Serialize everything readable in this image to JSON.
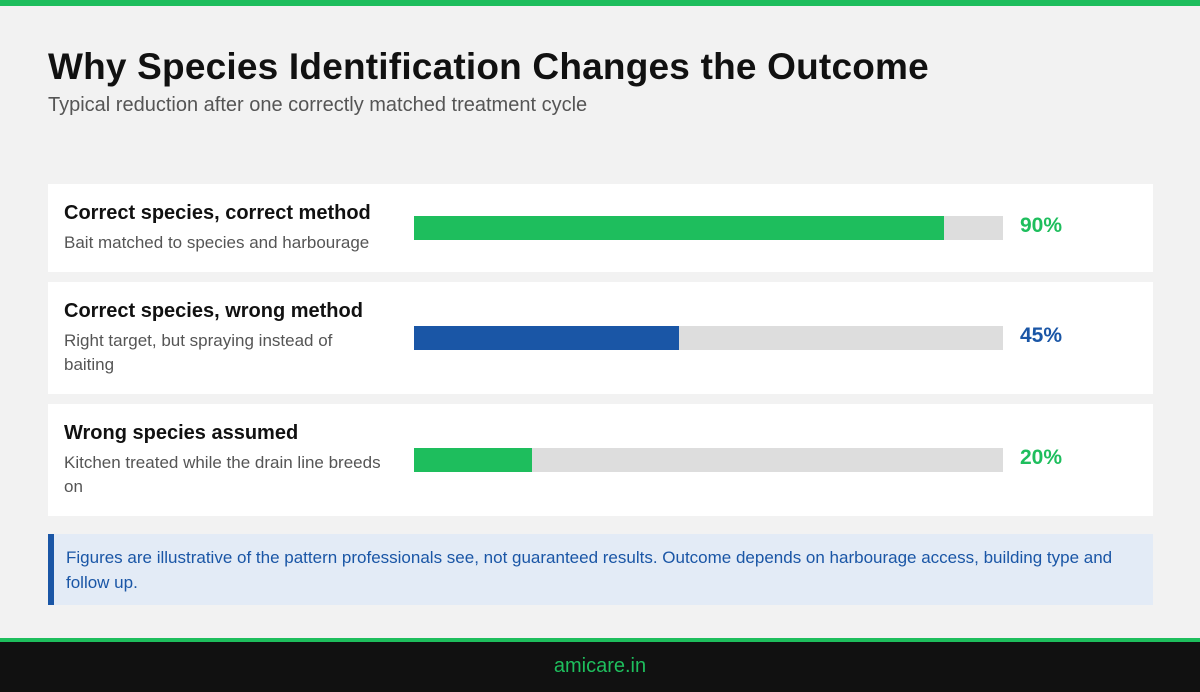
{
  "header": {
    "title": "Why Species Identification Changes the Outcome",
    "subtitle": "Typical reduction after one correctly matched treatment cycle"
  },
  "colors": {
    "accent_green": "#1ebe5d",
    "accent_blue": "#1a56a6",
    "track": "#dddddd"
  },
  "chart_data": {
    "type": "bar",
    "orientation": "horizontal",
    "title": "Why Species Identification Changes the Outcome",
    "subtitle": "Typical reduction after one correctly matched treatment cycle",
    "xlim": [
      0,
      100
    ],
    "unit": "%",
    "categories": [
      "Correct species, correct method",
      "Correct species, wrong method",
      "Wrong species assumed"
    ],
    "descriptions": [
      "Bait matched to species and harbourage",
      "Right target, but spraying instead of baiting",
      "Kitchen treated while the drain line breeds on"
    ],
    "values": [
      90,
      45,
      20
    ],
    "value_labels": [
      "90%",
      "45%",
      "20%"
    ],
    "bar_colors": [
      "#1ebe5d",
      "#1a56a6",
      "#1ebe5d"
    ]
  },
  "note": {
    "text": "Figures are illustrative of the pattern professionals see, not guaranteed results. Outcome depends on harbourage access, building type and follow up."
  },
  "footer": {
    "site": "amicare.in"
  }
}
